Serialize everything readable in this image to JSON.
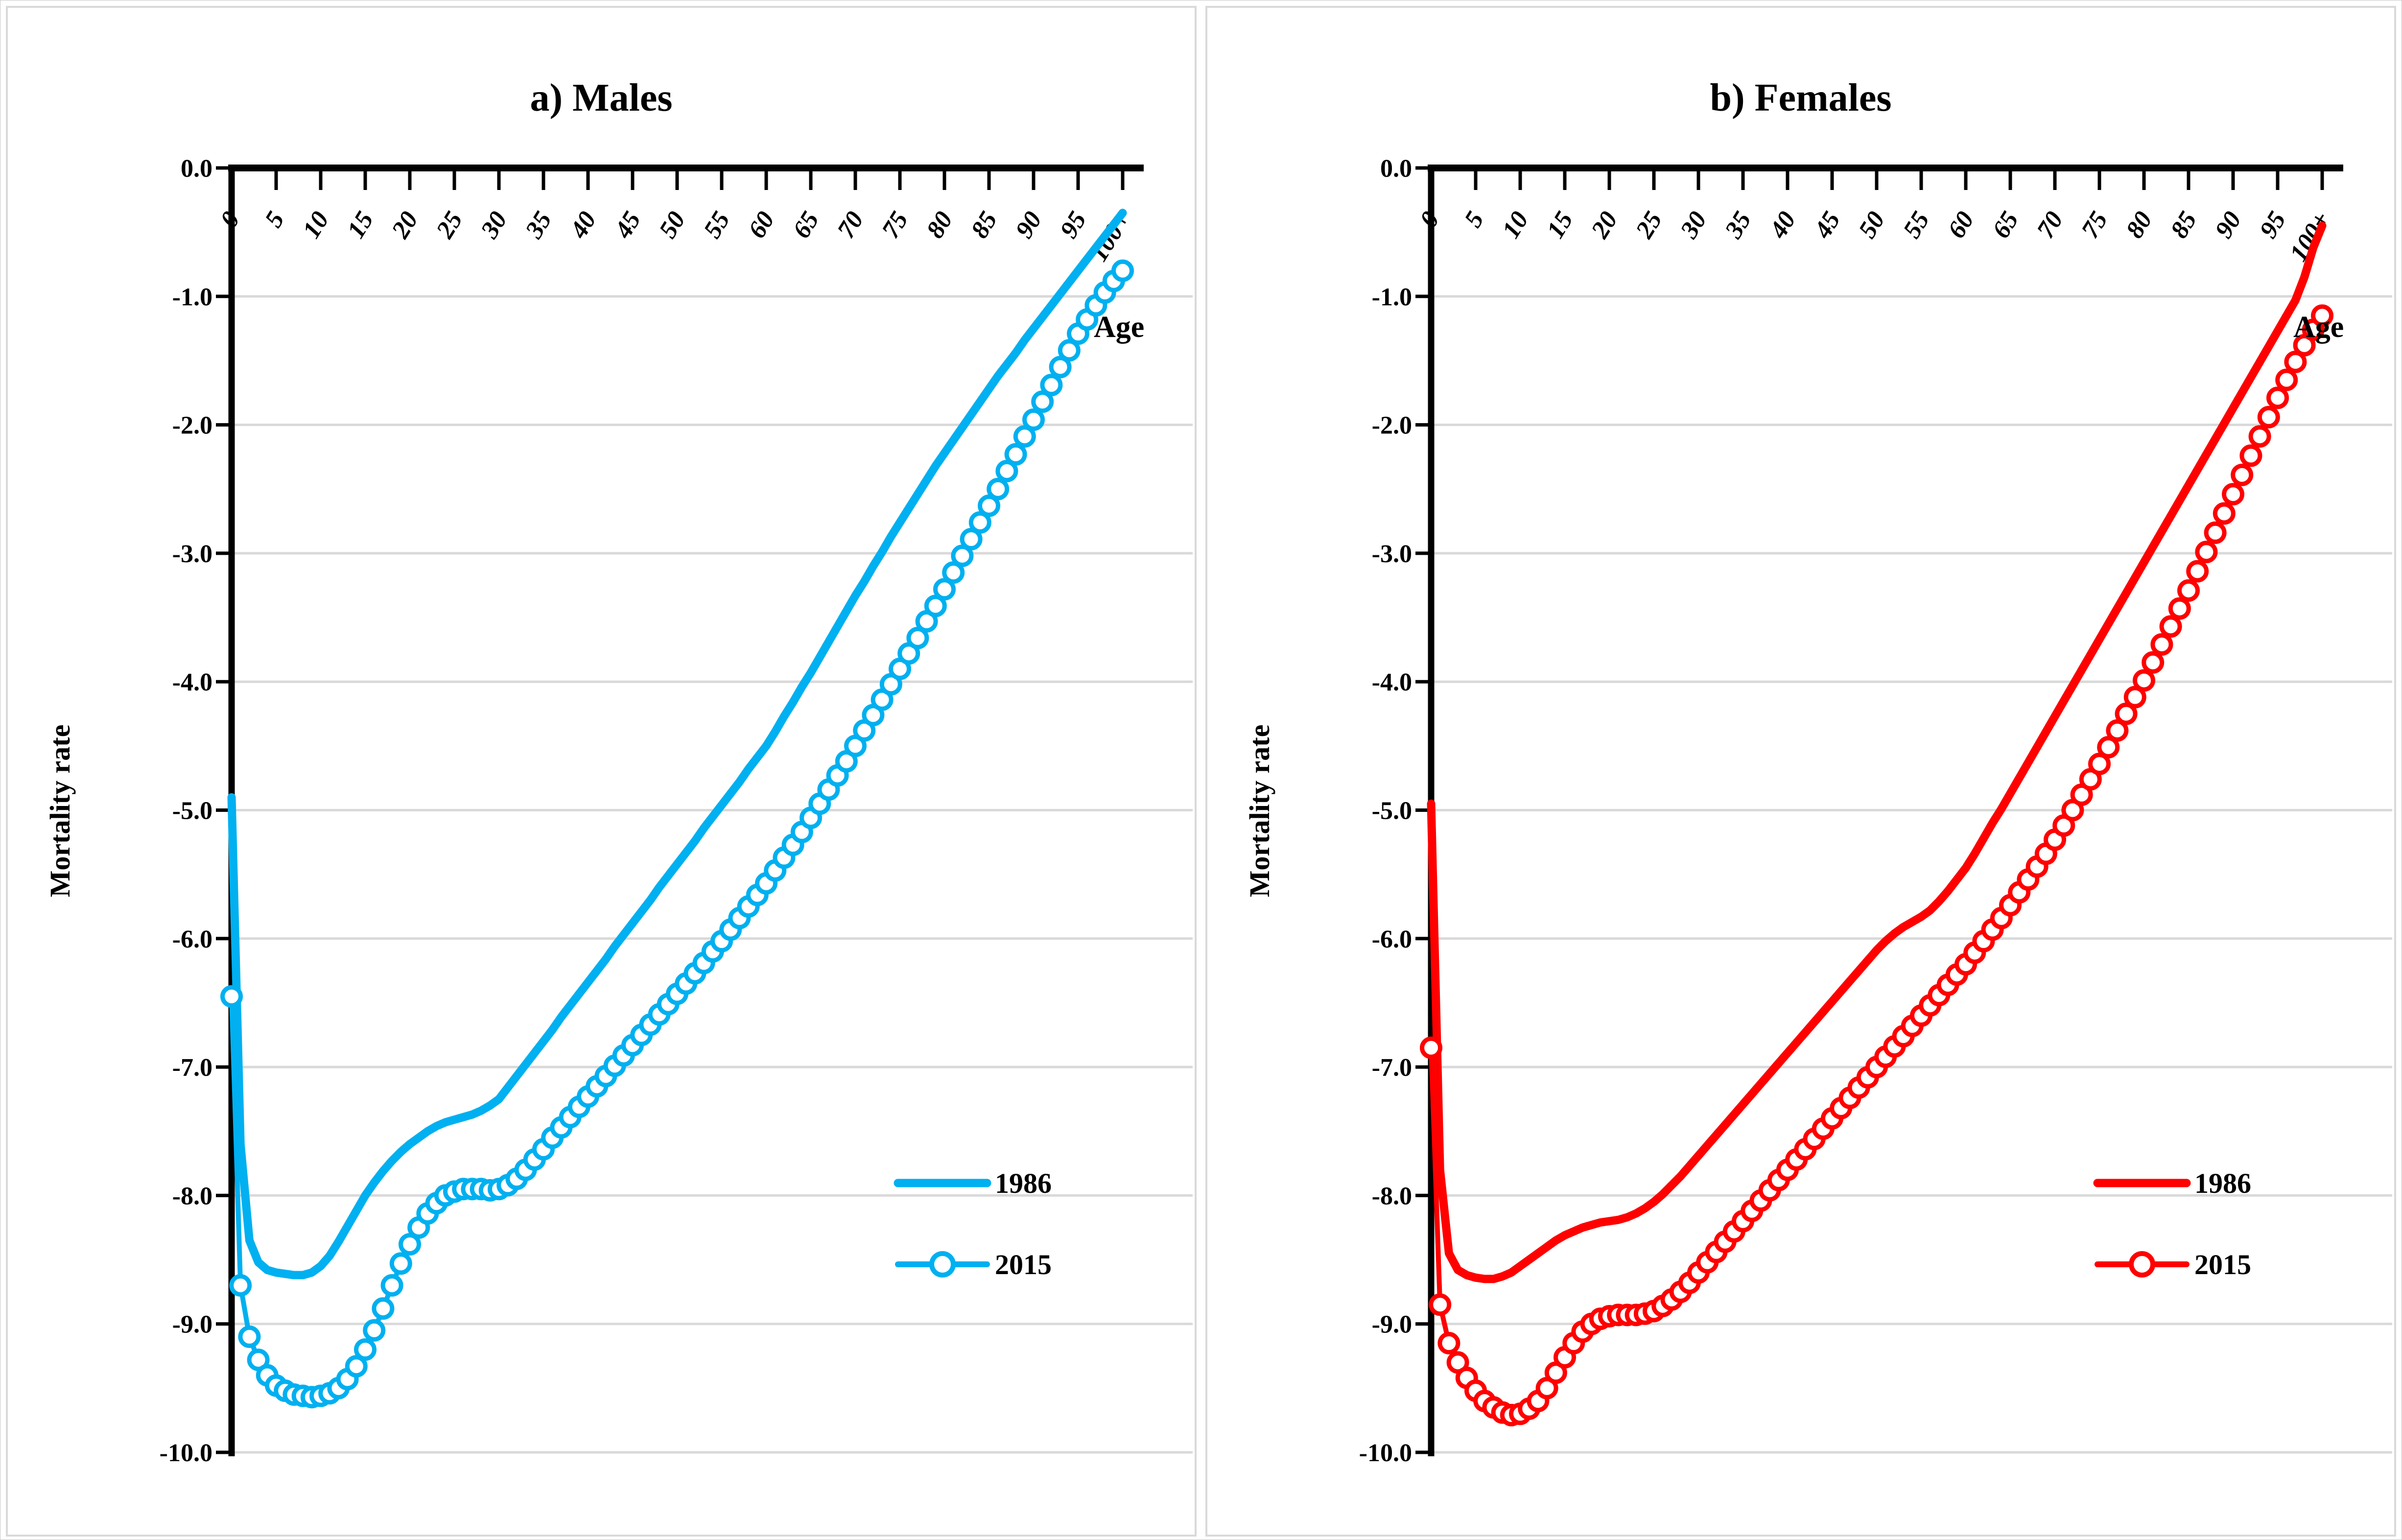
{
  "figure": {
    "background_color": "#FFFFFF",
    "panel_border_color": "#D9D9D9",
    "grid_color": "#D9D9D9",
    "axis_color": "#000000",
    "text_color": "#000000",
    "marker_fill": "#FFFFFF"
  },
  "chart_data": [
    {
      "type": "line",
      "title": "a) Males",
      "xlabel": "Age",
      "ylabel": "Mortality rate",
      "color": "#00B0F0",
      "grid": "horizontal",
      "legend_position": "inside-lower-right",
      "ylim": [
        0.0,
        -10.0
      ],
      "x_ages": "one value per single year of age, 0 through 100+",
      "x_tick_labels": [
        "0",
        "5",
        "10",
        "15",
        "20",
        "25",
        "30",
        "35",
        "40",
        "45",
        "50",
        "55",
        "60",
        "65",
        "70",
        "75",
        "80",
        "85",
        "90",
        "95",
        "100+"
      ],
      "y_tick_labels": [
        "0.0",
        "-1.0",
        "-2.0",
        "-3.0",
        "-4.0",
        "-5.0",
        "-6.0",
        "-7.0",
        "-8.0",
        "-9.0",
        "-10.0"
      ],
      "series": [
        {
          "name": "1986",
          "style": "solid-line",
          "values": [
            -4.9,
            -7.6,
            -8.35,
            -8.52,
            -8.58,
            -8.6,
            -8.61,
            -8.62,
            -8.62,
            -8.6,
            -8.55,
            -8.47,
            -8.36,
            -8.24,
            -8.12,
            -8.0,
            -7.9,
            -7.81,
            -7.73,
            -7.66,
            -7.6,
            -7.55,
            -7.5,
            -7.46,
            -7.43,
            -7.41,
            -7.39,
            -7.37,
            -7.34,
            -7.3,
            -7.25,
            -7.16,
            -7.07,
            -6.98,
            -6.89,
            -6.8,
            -6.71,
            -6.61,
            -6.52,
            -6.43,
            -6.34,
            -6.25,
            -6.16,
            -6.06,
            -5.97,
            -5.88,
            -5.79,
            -5.7,
            -5.6,
            -5.51,
            -5.42,
            -5.33,
            -5.24,
            -5.14,
            -5.05,
            -4.96,
            -4.87,
            -4.78,
            -4.68,
            -4.59,
            -4.5,
            -4.39,
            -4.27,
            -4.16,
            -4.04,
            -3.93,
            -3.81,
            -3.69,
            -3.57,
            -3.45,
            -3.33,
            -3.22,
            -3.1,
            -2.99,
            -2.87,
            -2.76,
            -2.65,
            -2.54,
            -2.43,
            -2.32,
            -2.22,
            -2.12,
            -2.02,
            -1.92,
            -1.82,
            -1.72,
            -1.62,
            -1.53,
            -1.44,
            -1.34,
            -1.25,
            -1.16,
            -1.07,
            -0.98,
            -0.89,
            -0.8,
            -0.71,
            -0.62,
            -0.53,
            -0.44,
            -0.35
          ]
        },
        {
          "name": "2015",
          "style": "line-with-open-circle-markers",
          "values": [
            -6.45,
            -8.7,
            -9.1,
            -9.28,
            -9.4,
            -9.48,
            -9.52,
            -9.55,
            -9.56,
            -9.57,
            -9.56,
            -9.54,
            -9.5,
            -9.43,
            -9.33,
            -9.2,
            -9.05,
            -8.88,
            -8.7,
            -8.53,
            -8.38,
            -8.25,
            -8.14,
            -8.06,
            -8.0,
            -7.97,
            -7.95,
            -7.95,
            -7.95,
            -7.96,
            -7.95,
            -7.92,
            -7.87,
            -7.8,
            -7.72,
            -7.64,
            -7.55,
            -7.47,
            -7.39,
            -7.31,
            -7.23,
            -7.15,
            -7.07,
            -6.99,
            -6.91,
            -6.83,
            -6.75,
            -6.67,
            -6.59,
            -6.51,
            -6.43,
            -6.35,
            -6.27,
            -6.19,
            -6.1,
            -6.02,
            -5.93,
            -5.84,
            -5.75,
            -5.66,
            -5.57,
            -5.47,
            -5.37,
            -5.27,
            -5.17,
            -5.06,
            -4.95,
            -4.84,
            -4.73,
            -4.62,
            -4.5,
            -4.38,
            -4.26,
            -4.14,
            -4.02,
            -3.9,
            -3.78,
            -3.66,
            -3.53,
            -3.41,
            -3.28,
            -3.15,
            -3.02,
            -2.89,
            -2.76,
            -2.63,
            -2.5,
            -2.36,
            -2.23,
            -2.09,
            -1.96,
            -1.82,
            -1.69,
            -1.55,
            -1.42,
            -1.29,
            -1.18,
            -1.07,
            -0.97,
            -0.88,
            -0.8
          ]
        }
      ]
    },
    {
      "type": "line",
      "title": "b) Females",
      "xlabel": "Age",
      "ylabel": "Mortality rate",
      "color": "#FF0000",
      "grid": "horizontal",
      "legend_position": "inside-lower-right",
      "ylim": [
        0.0,
        -10.0
      ],
      "x_ages": "one value per single year of age, 0 through 100+",
      "x_tick_labels": [
        "0",
        "5",
        "10",
        "15",
        "20",
        "25",
        "30",
        "35",
        "40",
        "45",
        "50",
        "55",
        "60",
        "65",
        "70",
        "75",
        "80",
        "85",
        "90",
        "95",
        "100+"
      ],
      "y_tick_labels": [
        "0.0",
        "-1.0",
        "-2.0",
        "-3.0",
        "-4.0",
        "-5.0",
        "-6.0",
        "-7.0",
        "-8.0",
        "-9.0",
        "-10.0"
      ],
      "series": [
        {
          "name": "1986",
          "style": "solid-line",
          "values": [
            -4.95,
            -7.8,
            -8.45,
            -8.58,
            -8.62,
            -8.64,
            -8.65,
            -8.65,
            -8.63,
            -8.6,
            -8.55,
            -8.5,
            -8.45,
            -8.4,
            -8.35,
            -8.31,
            -8.28,
            -8.25,
            -8.23,
            -8.21,
            -8.2,
            -8.19,
            -8.17,
            -8.14,
            -8.1,
            -8.05,
            -7.99,
            -7.92,
            -7.85,
            -7.77,
            -7.69,
            -7.61,
            -7.53,
            -7.45,
            -7.37,
            -7.29,
            -7.21,
            -7.13,
            -7.05,
            -6.97,
            -6.89,
            -6.81,
            -6.73,
            -6.65,
            -6.57,
            -6.49,
            -6.41,
            -6.33,
            -6.25,
            -6.17,
            -6.09,
            -6.02,
            -5.96,
            -5.91,
            -5.87,
            -5.83,
            -5.78,
            -5.71,
            -5.63,
            -5.54,
            -5.45,
            -5.34,
            -5.22,
            -5.1,
            -4.99,
            -4.87,
            -4.75,
            -4.63,
            -4.51,
            -4.39,
            -4.27,
            -4.15,
            -4.03,
            -3.91,
            -3.79,
            -3.67,
            -3.55,
            -3.43,
            -3.31,
            -3.19,
            -3.07,
            -2.95,
            -2.83,
            -2.71,
            -2.59,
            -2.47,
            -2.35,
            -2.23,
            -2.11,
            -1.99,
            -1.87,
            -1.75,
            -1.63,
            -1.51,
            -1.39,
            -1.27,
            -1.15,
            -1.03,
            -0.85,
            -0.62,
            -0.45
          ]
        },
        {
          "name": "2015",
          "style": "line-with-open-circle-markers",
          "values": [
            -6.85,
            -8.85,
            -9.15,
            -9.3,
            -9.42,
            -9.52,
            -9.6,
            -9.65,
            -9.69,
            -9.71,
            -9.7,
            -9.66,
            -9.6,
            -9.5,
            -9.38,
            -9.26,
            -9.15,
            -9.06,
            -9.0,
            -8.96,
            -8.94,
            -8.93,
            -8.93,
            -8.93,
            -8.92,
            -8.9,
            -8.86,
            -8.81,
            -8.75,
            -8.68,
            -8.6,
            -8.52,
            -8.44,
            -8.36,
            -8.28,
            -8.2,
            -8.12,
            -8.04,
            -7.96,
            -7.88,
            -7.8,
            -7.72,
            -7.64,
            -7.56,
            -7.48,
            -7.4,
            -7.32,
            -7.24,
            -7.16,
            -7.08,
            -7.0,
            -6.92,
            -6.84,
            -6.76,
            -6.68,
            -6.6,
            -6.52,
            -6.44,
            -6.36,
            -6.28,
            -6.2,
            -6.11,
            -6.02,
            -5.93,
            -5.84,
            -5.74,
            -5.64,
            -5.54,
            -5.44,
            -5.34,
            -5.23,
            -5.12,
            -5.0,
            -4.88,
            -4.76,
            -4.64,
            -4.51,
            -4.38,
            -4.25,
            -4.12,
            -3.99,
            -3.85,
            -3.71,
            -3.57,
            -3.43,
            -3.29,
            -3.14,
            -2.99,
            -2.84,
            -2.69,
            -2.54,
            -2.39,
            -2.24,
            -2.09,
            -1.94,
            -1.79,
            -1.65,
            -1.51,
            -1.38,
            -1.26,
            -1.15
          ]
        }
      ]
    }
  ]
}
